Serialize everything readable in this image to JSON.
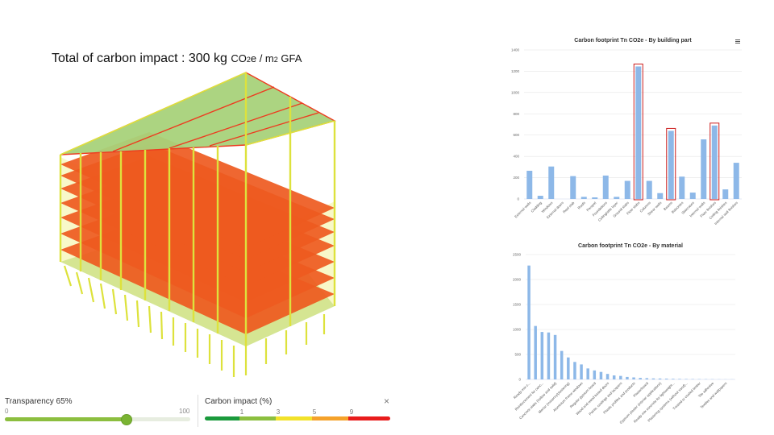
{
  "headline": {
    "main": "Total of carbon impact : 300 kg ",
    "unit_pre": "CO",
    "unit_sub": "2",
    "unit_mid": "e / m",
    "unit_sub2": "2",
    "unit_post": " GFA"
  },
  "transparency": {
    "label": "Transparency 65%",
    "min": "0",
    "max": "100",
    "value": 65
  },
  "carbon_impact": {
    "label": "Carbon impact (%)",
    "close": "×",
    "ticks": [
      "1",
      "3",
      "5",
      "9"
    ],
    "colors": [
      "#1a9a3c",
      "#8bbf3f",
      "#f2e22a",
      "#f5a22a",
      "#e81c1c"
    ]
  },
  "colors": {
    "bar": "#8db8e8",
    "highlight": "#cc1f1f",
    "slab_red": "#ee5a1f",
    "slab_green": "#a8d27a",
    "column_yellow": "#dde23c"
  },
  "menu_icon": "hamburger-menu-icon",
  "chart_data": [
    {
      "type": "bar",
      "title": "Carbon footprint Tn CO2e - By building part",
      "ylim": [
        0,
        1400
      ],
      "yticks": [
        0,
        200,
        400,
        600,
        800,
        1000,
        1200,
        1400
      ],
      "grid": true,
      "categories": [
        "External walls",
        "Cladding",
        "Windows",
        "External doors",
        "Roof slab",
        "Roofs",
        "Parapet",
        "Foundations",
        "Ceiling/attic layer",
        "Ground slabs",
        "Floor slabs",
        "Columns",
        "Shear walls",
        "Beams",
        "Balconies",
        "Staircases",
        "Internal walls",
        "Floor finishes",
        "Ceiling finishes",
        "Internal wall finishes"
      ],
      "values": [
        265,
        30,
        305,
        0,
        215,
        20,
        15,
        220,
        20,
        170,
        1245,
        170,
        55,
        640,
        210,
        60,
        560,
        690,
        90,
        340
      ],
      "highlighted": [
        "Floor slabs",
        "Beams",
        "Floor finishes"
      ]
    },
    {
      "type": "bar",
      "title": "Carbon footprint Tn CO2e - By material",
      "ylim": [
        0,
        2500
      ],
      "yticks": [
        0,
        500,
        1000,
        1500,
        2000,
        2500
      ],
      "grid": true,
      "categories": [
        "Ready-mix c...",
        "",
        "Reinforcement for conc...",
        "",
        "Concrete slabs (hollow and solid)",
        "",
        "Mortar (masonry/plastering)",
        "",
        "Aluminium frame windows",
        "",
        "Regular gypsum board",
        "",
        "Wood and wood based doors",
        "",
        "Paints, coatings and lacquers",
        "",
        "Plastic profiles and products",
        "",
        "Plasterboard",
        "",
        "Gypsum plaster (interior applications)",
        "",
        "Ready-mix concrete for lightweight...",
        "",
        "Plastering systems (without sand)...",
        "",
        "Treated or coated timber",
        "",
        "Tile adhesive",
        "",
        "Textiles and wallpapers",
        ""
      ],
      "values": [
        2280,
        1070,
        950,
        940,
        890,
        570,
        440,
        350,
        300,
        220,
        180,
        150,
        110,
        80,
        70,
        50,
        40,
        30,
        25,
        20,
        18,
        15,
        12,
        10,
        8,
        7,
        6,
        5,
        4,
        3,
        2,
        2
      ]
    }
  ]
}
